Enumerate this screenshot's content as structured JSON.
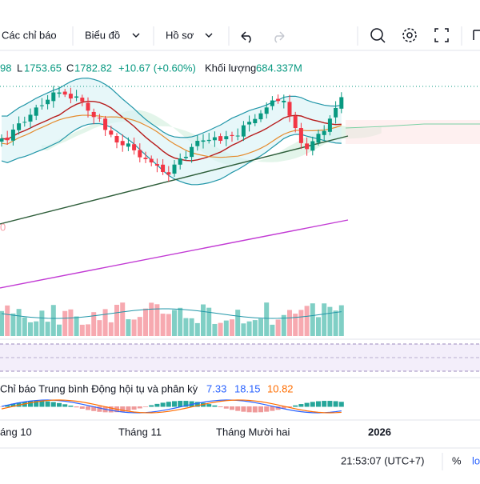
{
  "toolbar": {
    "indicators": "Các chỉ báo",
    "chart": "Biểu đồ",
    "profile": "Hồ sơ"
  },
  "legend": {
    "open_tail": "98",
    "low_label": "L",
    "low": "1753.65",
    "close_label": "C",
    "close": "1782.82",
    "change": "+10.67 (+0.60%)",
    "volume_label": "Khối lượng",
    "volume": "684.337M"
  },
  "price_label": "0",
  "macd": {
    "name": "Chỉ báo Trung bình Động hội tụ và phân kỳ",
    "values": [
      "7.33",
      "18.15",
      "10.82"
    ]
  },
  "time_axis": [
    "áng 10",
    "Tháng 11",
    "Tháng Mười hai",
    "2026"
  ],
  "status": {
    "clock": "21:53:07 (UTC+7)",
    "percent": "%",
    "log": "lo"
  }
}
